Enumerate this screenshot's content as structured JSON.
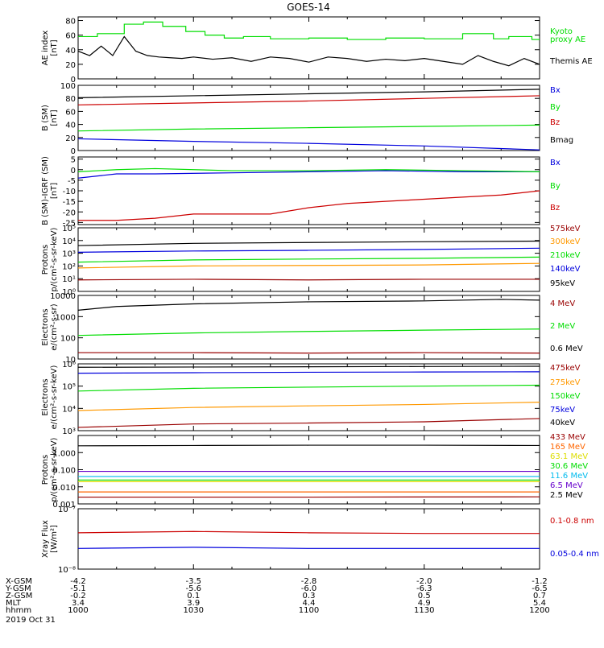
{
  "title": "GOES-14",
  "colors": {
    "black": "#000000",
    "red": "#cc0000",
    "green": "#00dd00",
    "blue": "#0000dd",
    "orange": "#ff9900",
    "cyan": "#00bbee",
    "yellow": "#dddd00",
    "purple": "#6600cc",
    "dkred": "#990000",
    "orange2": "#ff6600"
  },
  "time_axis": {
    "start_hhmm": "1000",
    "end_hhmm": "1200",
    "ticks": [
      {
        "hhmm": "1000",
        "xgsm": "-4.2",
        "ygsm": "-5.1",
        "zgsm": "-0.2",
        "mlt": "3.4"
      },
      {
        "hhmm": "1030",
        "xgsm": "-3.5",
        "ygsm": "-5.6",
        "zgsm": "0.1",
        "mlt": "3.9"
      },
      {
        "hhmm": "1100",
        "xgsm": "-2.8",
        "ygsm": "-6.0",
        "zgsm": "0.3",
        "mlt": "4.4"
      },
      {
        "hhmm": "1130",
        "xgsm": "-2.0",
        "ygsm": "-6.3",
        "zgsm": "0.5",
        "mlt": "4.9"
      },
      {
        "hhmm": "1200",
        "xgsm": "-1.2",
        "ygsm": "-6.5",
        "zgsm": "0.7",
        "mlt": "5.4"
      }
    ],
    "row_labels": [
      "X-GSM",
      "Y-GSM",
      "Z-GSM",
      "MLT",
      "hhmm"
    ],
    "date": "2019 Oct 31"
  },
  "chart_data": [
    {
      "type": "line",
      "ylabel": [
        "AE index",
        "[nT]"
      ],
      "ylim": [
        0,
        85
      ],
      "scale": "linear",
      "ticks": [
        "0",
        "20",
        "40",
        "60",
        "80"
      ],
      "tick_values": [
        0,
        20,
        40,
        60,
        80
      ],
      "series": [
        {
          "name": "Kyoto",
          "name2": "proxy AE",
          "color": "green",
          "kind": "step",
          "x": [
            0,
            5,
            12,
            17,
            22,
            28,
            33,
            38,
            43,
            50,
            60,
            70,
            80,
            90,
            100,
            108,
            112,
            118,
            120
          ],
          "y": [
            58,
            62,
            75,
            78,
            72,
            65,
            60,
            56,
            58,
            55,
            56,
            54,
            56,
            55,
            62,
            55,
            58,
            54,
            55
          ]
        },
        {
          "name": "Themis AE",
          "color": "black",
          "kind": "line",
          "x": [
            0,
            3,
            6,
            9,
            12,
            15,
            18,
            21,
            24,
            27,
            30,
            35,
            40,
            45,
            50,
            55,
            60,
            65,
            70,
            75,
            80,
            85,
            90,
            95,
            100,
            104,
            108,
            112,
            116,
            120
          ],
          "y": [
            38,
            32,
            45,
            32,
            58,
            38,
            32,
            30,
            29,
            28,
            30,
            27,
            29,
            24,
            30,
            28,
            23,
            30,
            28,
            24,
            27,
            25,
            28,
            24,
            20,
            32,
            24,
            18,
            28,
            20
          ]
        }
      ]
    },
    {
      "type": "line",
      "ylabel": [
        "B (SM)",
        "[nT]"
      ],
      "ylim": [
        0,
        100
      ],
      "scale": "linear",
      "ticks": [
        "0",
        "20",
        "40",
        "60",
        "80",
        "100"
      ],
      "tick_values": [
        0,
        20,
        40,
        60,
        80,
        100
      ],
      "series": [
        {
          "name": "Bx",
          "color": "blue",
          "x": [
            0,
            30,
            60,
            90,
            120
          ],
          "y": [
            18,
            14,
            11,
            7,
            1
          ]
        },
        {
          "name": "By",
          "color": "green",
          "x": [
            0,
            30,
            60,
            90,
            120
          ],
          "y": [
            30,
            33,
            35,
            37,
            39
          ]
        },
        {
          "name": "Bz",
          "color": "red",
          "x": [
            0,
            30,
            60,
            90,
            120
          ],
          "y": [
            70,
            73,
            76,
            80,
            84
          ]
        },
        {
          "name": "Bmag",
          "color": "black",
          "x": [
            0,
            30,
            60,
            90,
            120
          ],
          "y": [
            81,
            84,
            87,
            90,
            94
          ]
        }
      ]
    },
    {
      "type": "line",
      "ylabel": [
        "B (SM)-IGRF (SM)",
        "[nT]"
      ],
      "ylim": [
        -26,
        6
      ],
      "scale": "linear",
      "ticks": [
        "-25",
        "-20",
        "-15",
        "-10",
        "-5",
        "0",
        "5"
      ],
      "tick_values": [
        -25,
        -20,
        -15,
        -10,
        -5,
        0,
        5
      ],
      "series": [
        {
          "name": "Bx",
          "color": "blue",
          "x": [
            0,
            10,
            20,
            40,
            60,
            80,
            100,
            120
          ],
          "y": [
            -4,
            -2,
            -2,
            -1.5,
            -1,
            -0.5,
            -1,
            -1
          ]
        },
        {
          "name": "By",
          "color": "green",
          "x": [
            0,
            10,
            20,
            40,
            60,
            80,
            100,
            120
          ],
          "y": [
            -1,
            0,
            0.5,
            -0.5,
            -0.5,
            0,
            -0.5,
            -1
          ]
        },
        {
          "name": "Bz",
          "color": "red",
          "x": [
            0,
            10,
            20,
            30,
            40,
            50,
            60,
            70,
            80,
            90,
            100,
            110,
            120
          ],
          "y": [
            -24,
            -24,
            -23,
            -21,
            -21,
            -21,
            -18,
            -16,
            -15,
            -14,
            -13,
            -12,
            -10
          ]
        }
      ]
    },
    {
      "type": "line",
      "ylabel": [
        "Protons",
        "p/(cm²-s-sr-keV)"
      ],
      "ylim": [
        1,
        100000
      ],
      "scale": "log",
      "ticks": [
        "10⁰",
        "10¹",
        "10²",
        "10³",
        "10⁴",
        "10⁵"
      ],
      "tick_values": [
        1,
        10,
        100,
        1000,
        10000,
        100000
      ],
      "series": [
        {
          "name": "575keV",
          "color": "dkred",
          "x": [
            0,
            30,
            60,
            90,
            120
          ],
          "y": [
            8,
            9,
            8,
            9,
            9
          ]
        },
        {
          "name": "300keV",
          "color": "orange",
          "x": [
            0,
            30,
            60,
            90,
            120
          ],
          "y": [
            70,
            100,
            110,
            120,
            160
          ]
        },
        {
          "name": "210keV",
          "color": "green",
          "x": [
            0,
            30,
            60,
            90,
            120
          ],
          "y": [
            200,
            300,
            350,
            400,
            500
          ]
        },
        {
          "name": "140keV",
          "color": "blue",
          "x": [
            0,
            30,
            60,
            90,
            120
          ],
          "y": [
            1200,
            1500,
            1700,
            2000,
            2500
          ]
        },
        {
          "name": "95keV",
          "color": "black",
          "x": [
            0,
            30,
            60,
            90,
            120
          ],
          "y": [
            4000,
            6000,
            7000,
            8000,
            9000
          ]
        }
      ]
    },
    {
      "type": "line",
      "ylabel": [
        "Electrons",
        "e/(cm²-s-sr)"
      ],
      "ylim": [
        10,
        10000
      ],
      "scale": "log",
      "ticks": [
        "10",
        "100",
        "1000",
        "10000"
      ],
      "tick_values": [
        10,
        100,
        1000,
        10000
      ],
      "series": [
        {
          "name": "4 MeV",
          "color": "dkred",
          "x": [
            0,
            30,
            60,
            90,
            120
          ],
          "y": [
            20,
            20,
            19,
            20,
            19
          ]
        },
        {
          "name": "2 MeV",
          "color": "green",
          "x": [
            0,
            30,
            60,
            90,
            120
          ],
          "y": [
            130,
            170,
            200,
            230,
            260
          ]
        },
        {
          "name": "0.6 MeV",
          "color": "black",
          "x": [
            0,
            10,
            30,
            60,
            90,
            110,
            120
          ],
          "y": [
            2000,
            3000,
            4000,
            5000,
            5500,
            6500,
            6000
          ]
        }
      ]
    },
    {
      "type": "line",
      "ylabel": [
        "Electrons",
        "e/(cm²-s-sr-keV)"
      ],
      "ylim": [
        1000,
        1000000
      ],
      "scale": "log",
      "ticks": [
        "10³",
        "10⁴",
        "10⁵",
        "10⁶"
      ],
      "tick_values": [
        1000,
        10000,
        100000,
        1000000
      ],
      "series": [
        {
          "name": "475keV",
          "color": "dkred",
          "x": [
            0,
            30,
            60,
            90,
            120
          ],
          "y": [
            1400,
            2000,
            2200,
            2500,
            3500
          ]
        },
        {
          "name": "275keV",
          "color": "orange",
          "x": [
            0,
            30,
            60,
            90,
            120
          ],
          "y": [
            8000,
            11000,
            13000,
            15000,
            19000
          ]
        },
        {
          "name": "150keV",
          "color": "green",
          "x": [
            0,
            30,
            60,
            90,
            120
          ],
          "y": [
            60000,
            80000,
            90000,
            100000,
            110000
          ]
        },
        {
          "name": "75keV",
          "color": "blue",
          "x": [
            0,
            30,
            60,
            90,
            120
          ],
          "y": [
            380000,
            400000,
            420000,
            430000,
            440000
          ]
        },
        {
          "name": "40keV",
          "color": "black",
          "x": [
            0,
            30,
            60,
            90,
            120
          ],
          "y": [
            700000,
            720000,
            740000,
            760000,
            780000
          ]
        }
      ]
    },
    {
      "type": "line",
      "ylabel": [
        "Protons",
        "p/(cm²-s-sr-keV)"
      ],
      "ylim": [
        0.001,
        10
      ],
      "scale": "log",
      "ticks": [
        "0.001",
        "0.010",
        "0.100",
        "1.000"
      ],
      "tick_values": [
        0.001,
        0.01,
        0.1,
        1
      ],
      "series": [
        {
          "name": "433 MeV",
          "color": "dkred",
          "x": [
            0,
            60,
            120
          ],
          "y": [
            0.0025,
            0.0025,
            0.0026
          ]
        },
        {
          "name": "165 MeV",
          "color": "orange2",
          "x": [
            0,
            60,
            120
          ],
          "y": [
            0.005,
            0.005,
            0.005
          ]
        },
        {
          "name": "63.1 MeV",
          "color": "yellow",
          "x": [
            0,
            60,
            120
          ],
          "y": [
            0.02,
            0.02,
            0.02
          ]
        },
        {
          "name": "30.6 MeV",
          "color": "green",
          "x": [
            0,
            60,
            120
          ],
          "y": [
            0.025,
            0.025,
            0.025
          ]
        },
        {
          "name": "11.6 MeV",
          "color": "cyan",
          "x": [
            0,
            60,
            120
          ],
          "y": [
            0.04,
            0.04,
            0.04
          ]
        },
        {
          "name": "6.5 MeV",
          "color": "purple",
          "x": [
            0,
            60,
            120
          ],
          "y": [
            0.08,
            0.08,
            0.08
          ]
        },
        {
          "name": "2.5 MeV",
          "color": "black",
          "x": [
            0,
            30,
            60,
            90,
            120
          ],
          "y": [
            2.5,
            2.6,
            2.7,
            2.7,
            2.6
          ]
        }
      ]
    },
    {
      "type": "line",
      "ylabel": [
        "Xray Flux",
        "[W/m²]"
      ],
      "ylim": [
        1e-08,
        1e-07
      ],
      "scale": "log",
      "ticks": [
        "10⁻⁸",
        "10⁻⁷"
      ],
      "tick_values": [
        1e-08,
        1e-07
      ],
      "series": [
        {
          "name": "0.1-0.8 nm",
          "color": "red",
          "x": [
            0,
            30,
            60,
            90,
            120
          ],
          "y": [
            4e-08,
            4.2e-08,
            4e-08,
            3.9e-08,
            3.9e-08
          ]
        },
        {
          "name": "0.05-0.4 nm",
          "color": "blue",
          "x": [
            0,
            30,
            60,
            90,
            120
          ],
          "y": [
            2.2e-08,
            2.3e-08,
            2.2e-08,
            2.2e-08,
            2.2e-08
          ]
        }
      ]
    }
  ]
}
